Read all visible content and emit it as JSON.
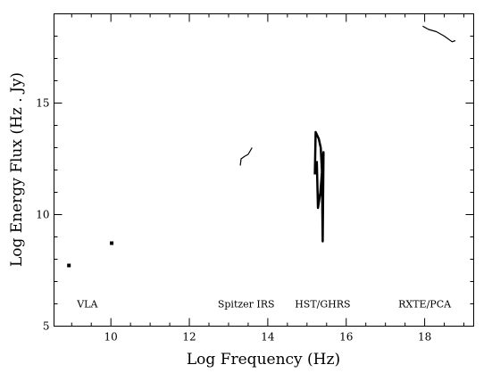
{
  "chart_data": {
    "type": "line",
    "title": "",
    "xlabel": "Log Frequency (Hz)",
    "ylabel": "Log Energy Flux (Hz . Jy)",
    "xlim": [
      8.55,
      19.25
    ],
    "ylim": [
      5,
      19
    ],
    "x_ticks": [
      10,
      12,
      14,
      16,
      18
    ],
    "y_ticks": [
      5,
      10,
      15
    ],
    "grid": false,
    "legend": "none",
    "annotations": [
      "VLA",
      "Spitzer IRS",
      "HST/GHRS",
      "RXTE/PCA"
    ],
    "series": [
      {
        "kind": "point",
        "points": [
          [
            8.93,
            7.72
          ]
        ]
      },
      {
        "kind": "point",
        "points": [
          [
            10.02,
            8.72
          ]
        ]
      },
      {
        "kind": "line",
        "points": [
          [
            13.3,
            12.2
          ],
          [
            13.32,
            12.5
          ],
          [
            13.4,
            12.6
          ],
          [
            13.5,
            12.7
          ],
          [
            13.6,
            13.0
          ]
        ]
      },
      {
        "kind": "line",
        "points": [
          [
            15.2,
            11.8
          ],
          [
            15.22,
            13.7
          ],
          [
            15.3,
            13.4
          ],
          [
            15.35,
            13.0
          ],
          [
            15.38,
            12.0
          ],
          [
            15.4,
            8.8
          ],
          [
            15.42,
            12.8
          ],
          [
            15.34,
            11.0
          ],
          [
            15.28,
            10.3
          ],
          [
            15.25,
            12.4
          ]
        ]
      },
      {
        "kind": "line",
        "points": [
          [
            17.95,
            18.45
          ],
          [
            18.1,
            18.3
          ],
          [
            18.3,
            18.2
          ],
          [
            18.5,
            18.0
          ],
          [
            18.7,
            17.75
          ],
          [
            18.78,
            17.8
          ]
        ]
      }
    ]
  }
}
